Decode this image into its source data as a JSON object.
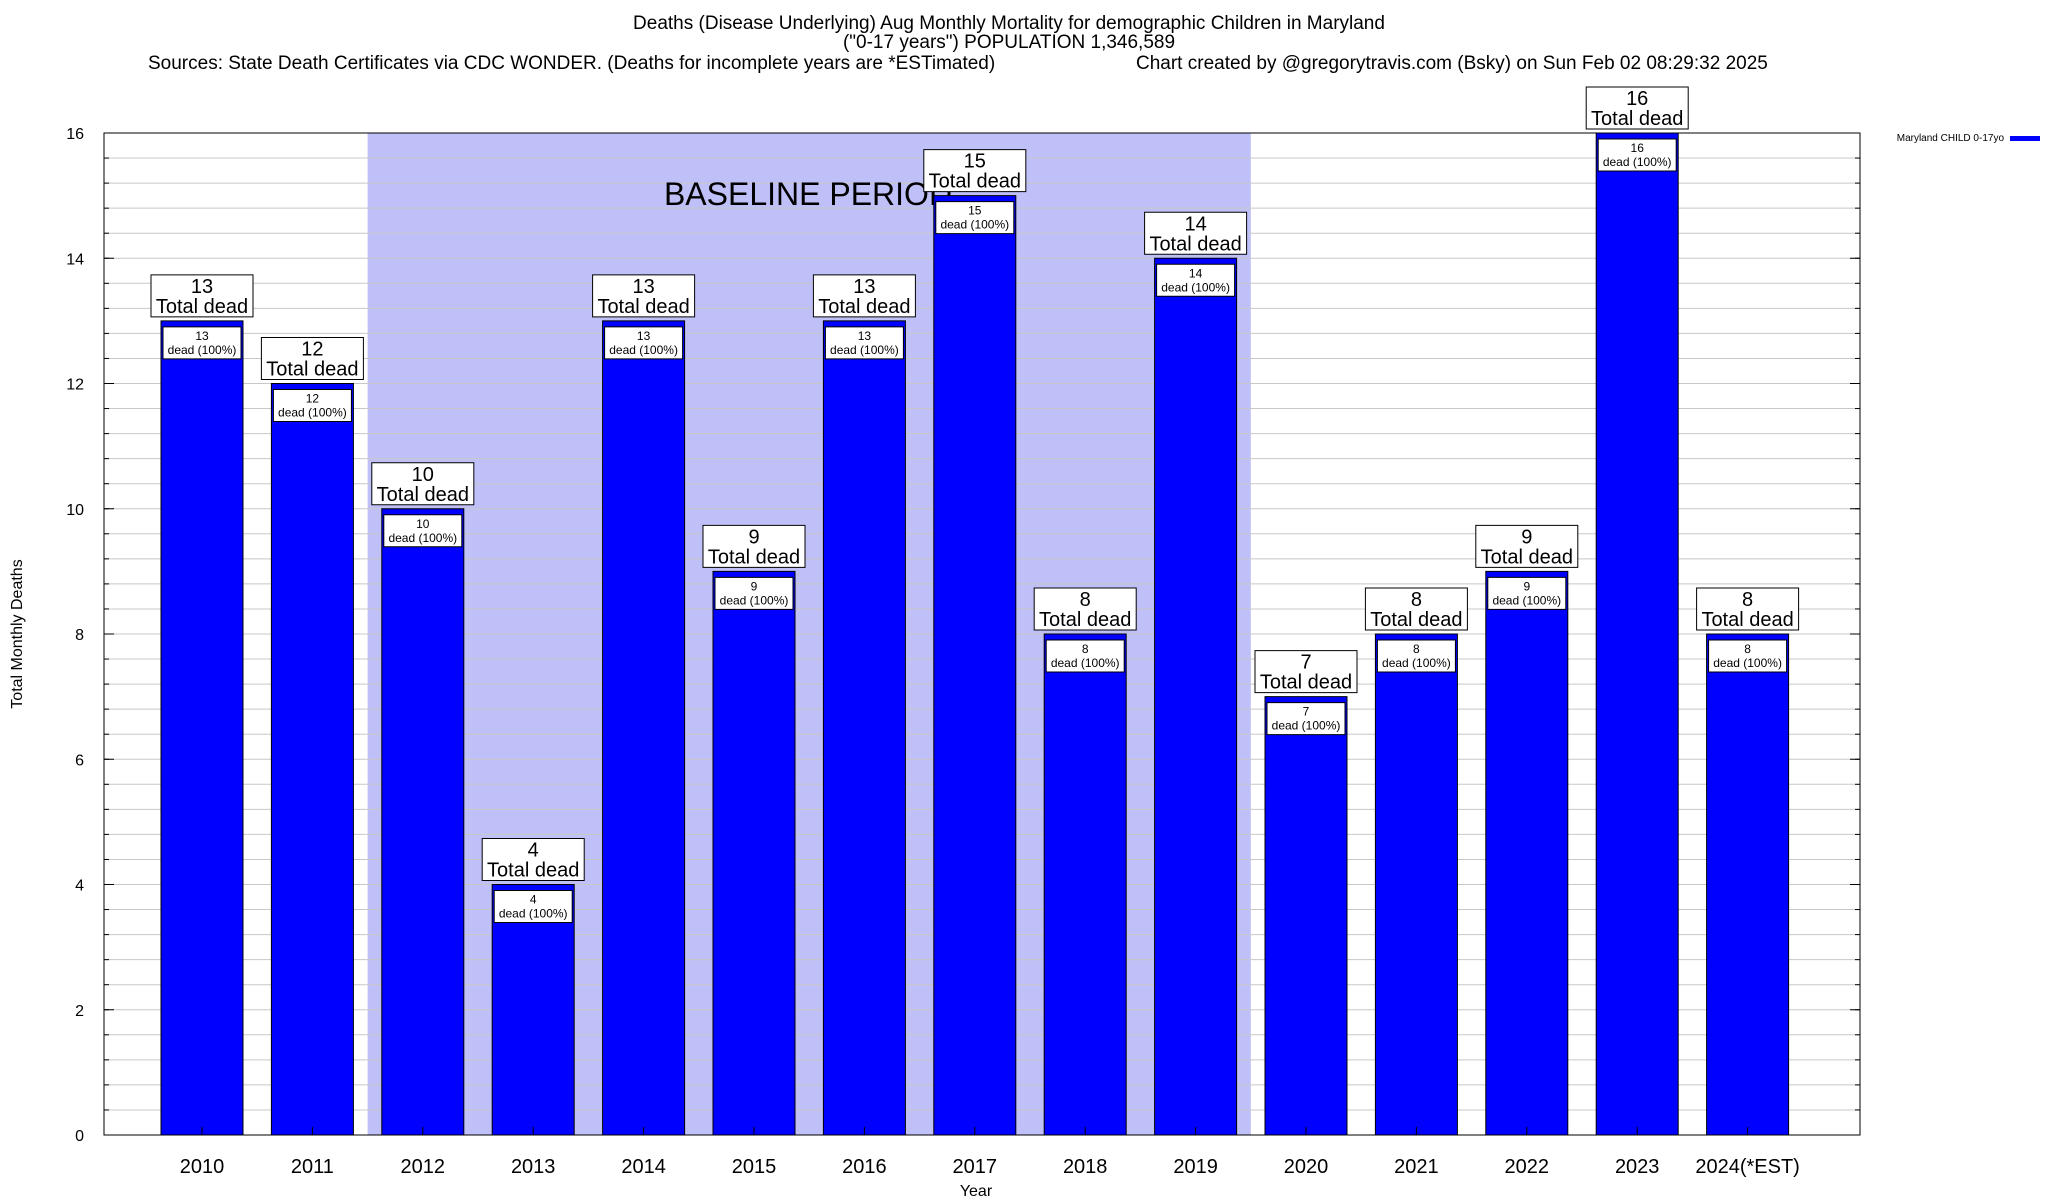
{
  "chart_data": {
    "type": "bar",
    "title_lines": [
      "Deaths (Disease Underlying) Aug Monthly Mortality for demographic Children in Maryland",
      "(\"0-17 years\") POPULATION 1,346,589"
    ],
    "sources_text": "Sources: State Death Certificates via CDC WONDER. (Deaths for incomplete years are *ESTimated)",
    "credit_text": "Chart created by @gregorytravis.com (Bsky) on Sun Feb 02 08:29:32 2025",
    "xlabel": "Year",
    "ylabel": "Total Monthly Deaths",
    "ylim": [
      0,
      16
    ],
    "yticks": [
      0,
      2,
      4,
      6,
      8,
      10,
      12,
      14,
      16
    ],
    "categories": [
      "2010",
      "2011",
      "2012",
      "2013",
      "2014",
      "2015",
      "2016",
      "2017",
      "2018",
      "2019",
      "2020",
      "2021",
      "2022",
      "2023",
      "2024(*EST)"
    ],
    "series": [
      {
        "name": "Maryland CHILD 0-17yo",
        "color": "#0000ff",
        "values": [
          13,
          12,
          10,
          4,
          13,
          9,
          13,
          15,
          8,
          14,
          7,
          8,
          9,
          16,
          8
        ]
      }
    ],
    "total_label_suffix": "Total dead",
    "inner_label_text": "dead (100%)",
    "baseline": {
      "label": "BASELINE PERIOD",
      "start_category": "2012",
      "end_category": "2019",
      "color": "#c0c0f8"
    },
    "grid": true,
    "legend_position": "top-right"
  }
}
